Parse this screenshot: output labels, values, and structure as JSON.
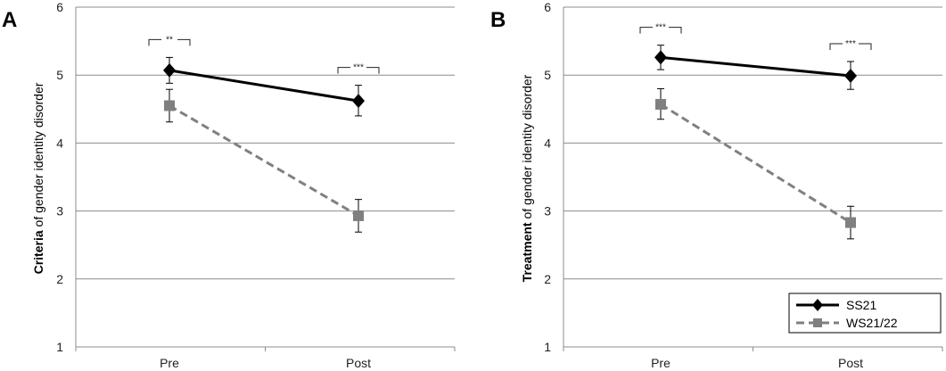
{
  "chart_data": [
    {
      "type": "line",
      "panel_label": "A",
      "ylabel_bold": "Criteria",
      "ylabel_rest": " of gender identity disorder",
      "categories": [
        "Pre",
        "Post"
      ],
      "ylim": [
        1,
        6
      ],
      "yticks": [
        1,
        2,
        3,
        4,
        5,
        6
      ],
      "grid": true,
      "series": [
        {
          "name": "SS21",
          "values": [
            5.07,
            4.62
          ],
          "err_low": [
            4.88,
            4.4
          ],
          "err_high": [
            5.26,
            4.85
          ],
          "color": "#000000",
          "dash": false,
          "marker": "diamond"
        },
        {
          "name": "WS21/22",
          "values": [
            4.55,
            2.93
          ],
          "err_low": [
            4.31,
            2.69
          ],
          "err_high": [
            4.79,
            3.17
          ],
          "color": "#808080",
          "dash": true,
          "marker": "square"
        }
      ],
      "significance": [
        {
          "category": 0,
          "label": "**"
        },
        {
          "category": 1,
          "label": "***"
        }
      ]
    },
    {
      "type": "line",
      "panel_label": "B",
      "ylabel_bold": "Treatment",
      "ylabel_rest": " of gender identity disorder",
      "categories": [
        "Pre",
        "Post"
      ],
      "ylim": [
        1,
        6
      ],
      "yticks": [
        1,
        2,
        3,
        4,
        5,
        6
      ],
      "grid": true,
      "legend": "bottom-right",
      "series": [
        {
          "name": "SS21",
          "values": [
            5.26,
            4.99
          ],
          "err_low": [
            5.08,
            4.79
          ],
          "err_high": [
            5.44,
            5.2
          ],
          "color": "#000000",
          "dash": false,
          "marker": "diamond"
        },
        {
          "name": "WS21/22",
          "values": [
            4.57,
            2.83
          ],
          "err_low": [
            4.35,
            2.59
          ],
          "err_high": [
            4.8,
            3.07
          ],
          "color": "#808080",
          "dash": true,
          "marker": "square"
        }
      ],
      "significance": [
        {
          "category": 0,
          "label": "***"
        },
        {
          "category": 1,
          "label": "***"
        }
      ]
    }
  ]
}
